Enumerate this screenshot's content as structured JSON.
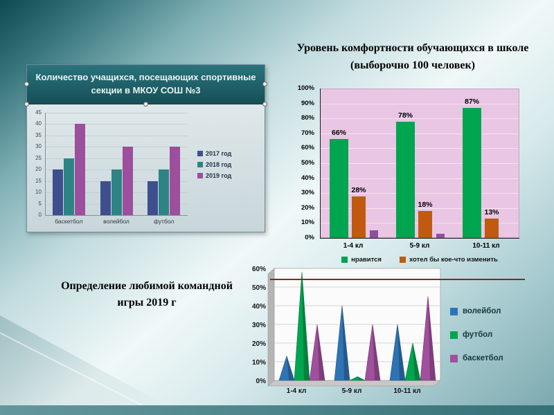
{
  "chart_data": [
    {
      "type": "bar",
      "title": "Количество учащихся, посещающих спортивные секции в МКОУ СОШ №3",
      "categories": [
        "баскетбол",
        "волейбол",
        "футбол"
      ],
      "series": [
        {
          "name": "2017 год",
          "color": "#3E4E8E",
          "values": [
            20,
            15,
            15
          ]
        },
        {
          "name": "2018 год",
          "color": "#2D8484",
          "values": [
            25,
            20,
            20
          ]
        },
        {
          "name": "2019 год",
          "color": "#9C4F9C",
          "values": [
            40,
            30,
            30
          ]
        }
      ],
      "ylim": [
        0,
        45
      ],
      "yticks": [
        0,
        5,
        10,
        15,
        20,
        25,
        30,
        35,
        40,
        45
      ],
      "xlabel": "",
      "ylabel": "",
      "grid": true,
      "legend_position": "right"
    },
    {
      "type": "bar",
      "title": "Уровень комфортности обучающихся в школе (выборочно 100 человек)",
      "categories": [
        "1-4 кл",
        "5-9 кл",
        "10-11 кл"
      ],
      "series": [
        {
          "name": "нравится",
          "color": "#00A550",
          "values": [
            66,
            78,
            87
          ],
          "data_labels": [
            "66%",
            "78%",
            "87%"
          ],
          "in_legend": true
        },
        {
          "name": "хотел бы кое-что изменить",
          "color": "#C05A10",
          "values": [
            28,
            18,
            13
          ],
          "data_labels": [
            "28%",
            "18%",
            "13%"
          ],
          "in_legend": true
        },
        {
          "name": "",
          "color": "#8E4F9E",
          "values": [
            5,
            3,
            0
          ],
          "in_legend": false
        }
      ],
      "ylim": [
        0,
        100
      ],
      "yticks": [
        0,
        10,
        20,
        30,
        40,
        50,
        60,
        70,
        80,
        90,
        100
      ],
      "xlabel": "",
      "ylabel": "",
      "plot_bg": "#E9C6E3",
      "grid": true,
      "legend_position": "bottom"
    },
    {
      "type": "area",
      "title": "Определение любимой командной игры 2019 г",
      "categories": [
        "1-4 кл",
        "5-9 кл",
        "10-11 кл"
      ],
      "series": [
        {
          "name": "волейбол",
          "color": "#2E74B5",
          "values": [
            13,
            40,
            30
          ]
        },
        {
          "name": "футбол",
          "color": "#00A550",
          "values": [
            58,
            2,
            20
          ]
        },
        {
          "name": "баскетбол",
          "color": "#A0509C",
          "values": [
            30,
            30,
            45
          ]
        }
      ],
      "ylim": [
        0,
        60
      ],
      "yticks": [
        0,
        10,
        20,
        30,
        40,
        50,
        60
      ],
      "xlabel": "",
      "ylabel": "",
      "grid": true,
      "legend_position": "right"
    }
  ]
}
